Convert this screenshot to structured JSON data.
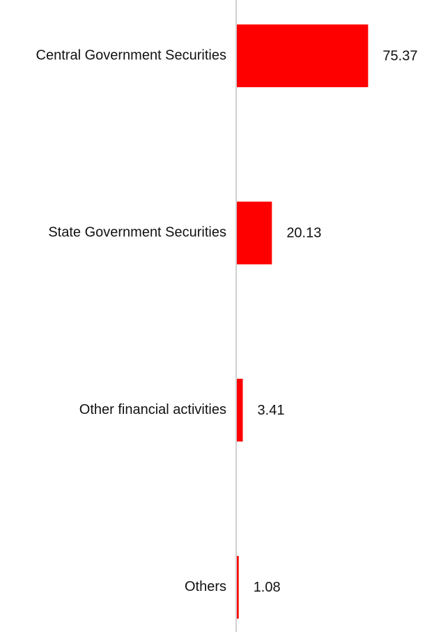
{
  "chart_data": {
    "type": "hbar",
    "categories": [
      "Central Government Securities",
      "State Government Securities",
      "Other financial activities",
      "Others"
    ],
    "values": [
      75.37,
      20.13,
      3.41,
      1.08
    ],
    "color": "#ff0000",
    "xlim": [
      0,
      100
    ]
  }
}
